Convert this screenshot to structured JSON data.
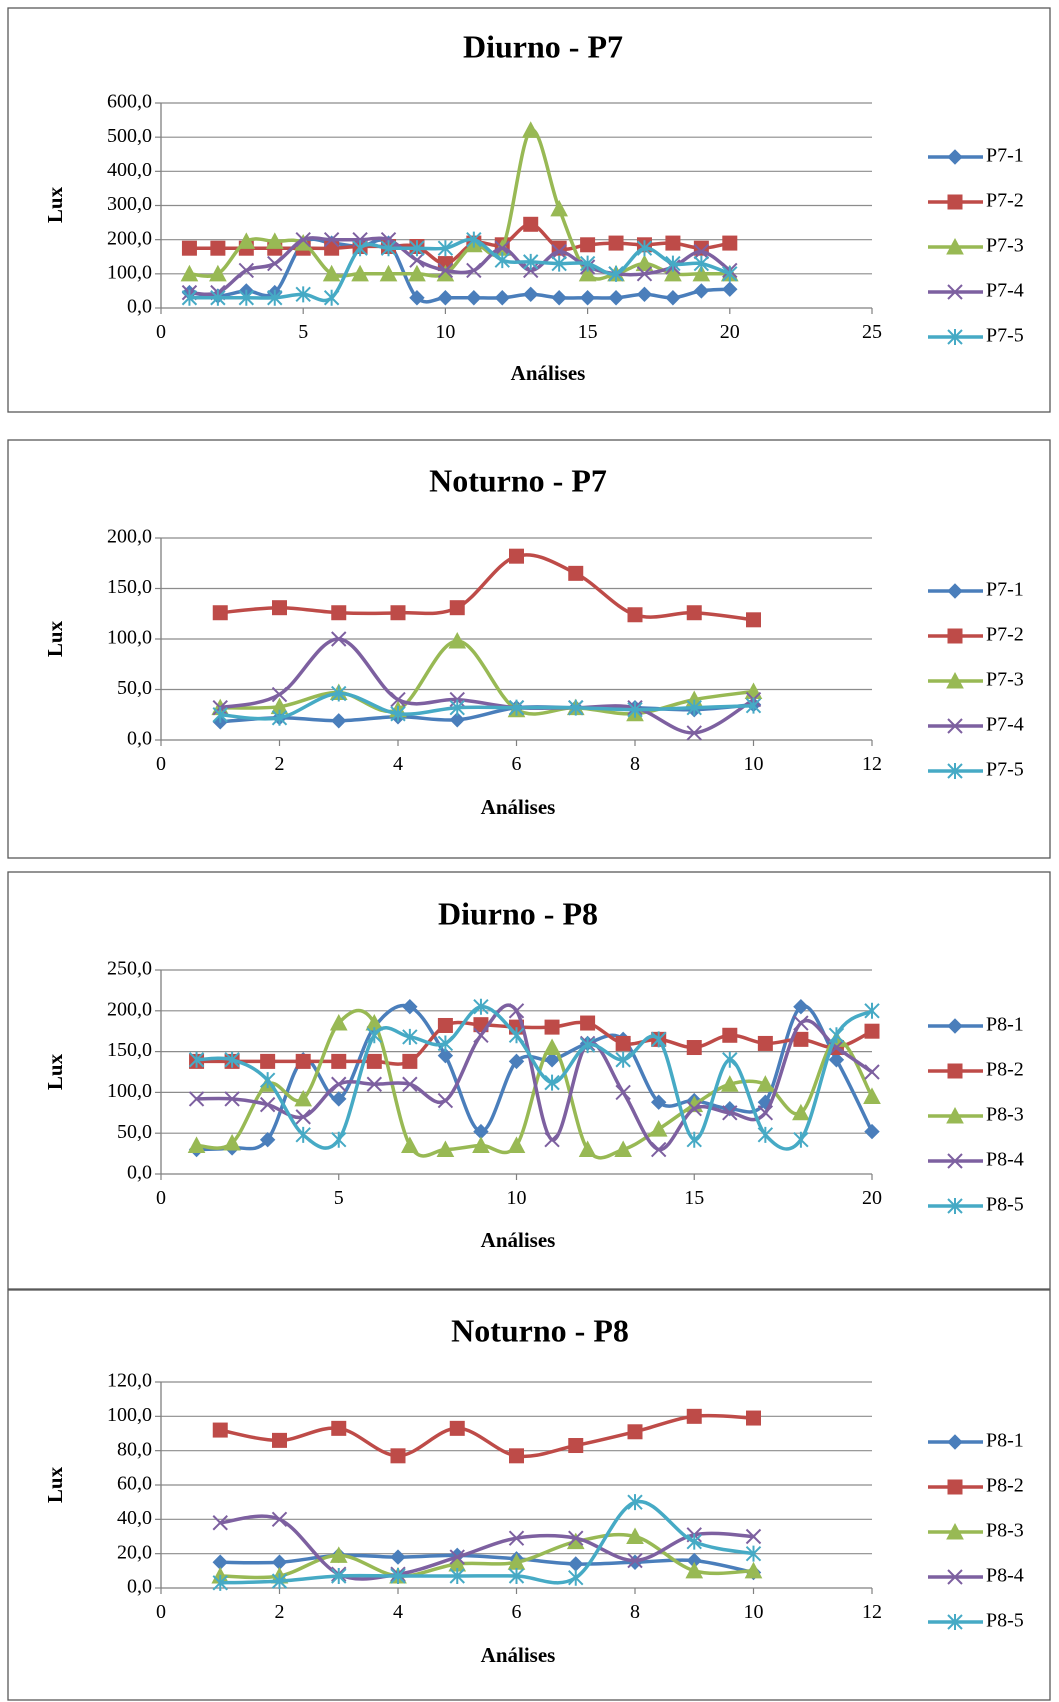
{
  "chart_data": [
    {
      "type": "line",
      "title": "Diurno - P7",
      "xlabel": "Análises",
      "ylabel": "Lux",
      "xlim": [
        0,
        25
      ],
      "ylim": [
        0,
        600
      ],
      "xticks": [
        0,
        5,
        10,
        15,
        20,
        25
      ],
      "xtick_labels": [
        "0",
        "5",
        "10",
        "15",
        "20",
        "25"
      ],
      "yticks": [
        0,
        100,
        200,
        300,
        400,
        500,
        600
      ],
      "ytick_labels": [
        "0,0",
        "100,0",
        "200,0",
        "300,0",
        "400,0",
        "500,0",
        "600,0"
      ],
      "grid": "horizontal",
      "legend_position": "right",
      "x": [
        1,
        2,
        3,
        4,
        5,
        6,
        7,
        8,
        9,
        10,
        11,
        12,
        13,
        14,
        15,
        16,
        17,
        18,
        19,
        20
      ],
      "series": [
        {
          "name": "P7-1",
          "color": "#4a7ebb",
          "marker": "diamond",
          "values": [
            45,
            35,
            50,
            45,
            190,
            190,
            180,
            190,
            30,
            30,
            30,
            30,
            40,
            30,
            30,
            30,
            40,
            30,
            50,
            55
          ]
        },
        {
          "name": "P7-2",
          "color": "#be4b48",
          "marker": "square",
          "values": [
            175,
            175,
            175,
            175,
            175,
            175,
            180,
            180,
            180,
            130,
            190,
            185,
            245,
            175,
            185,
            190,
            185,
            190,
            175,
            190
          ]
        },
        {
          "name": "P7-3",
          "color": "#98b954",
          "marker": "triangle",
          "values": [
            100,
            100,
            195,
            195,
            190,
            100,
            100,
            100,
            100,
            100,
            185,
            175,
            520,
            290,
            100,
            100,
            130,
            100,
            100,
            100
          ]
        },
        {
          "name": "P7-4",
          "color": "#7d60a0",
          "marker": "x",
          "values": [
            45,
            45,
            110,
            130,
            200,
            200,
            200,
            200,
            140,
            110,
            110,
            175,
            110,
            165,
            120,
            100,
            100,
            120,
            165,
            110
          ]
        },
        {
          "name": "P7-5",
          "color": "#46aac5",
          "marker": "star",
          "values": [
            30,
            30,
            30,
            30,
            40,
            30,
            175,
            175,
            175,
            175,
            200,
            140,
            135,
            130,
            130,
            100,
            175,
            130,
            130,
            100
          ]
        }
      ]
    },
    {
      "type": "line",
      "title": "Noturno - P7",
      "xlabel": "Análises",
      "ylabel": "Lux",
      "xlim": [
        0,
        12
      ],
      "ylim": [
        0,
        200
      ],
      "xticks": [
        0,
        2,
        4,
        6,
        8,
        10,
        12
      ],
      "xtick_labels": [
        "0",
        "2",
        "4",
        "6",
        "8",
        "10",
        "12"
      ],
      "yticks": [
        0,
        50,
        100,
        150,
        200
      ],
      "ytick_labels": [
        "0,0",
        "50,0",
        "100,0",
        "150,0",
        "200,0"
      ],
      "grid": "horizontal",
      "legend_position": "right",
      "x": [
        1,
        2,
        3,
        4,
        5,
        6,
        7,
        8,
        9,
        10
      ],
      "series": [
        {
          "name": "P7-1",
          "color": "#4a7ebb",
          "marker": "diamond",
          "values": [
            18,
            22,
            19,
            23,
            20,
            32,
            32,
            32,
            30,
            35
          ]
        },
        {
          "name": "P7-2",
          "color": "#be4b48",
          "marker": "square",
          "values": [
            126,
            131,
            126,
            126,
            131,
            182,
            165,
            124,
            126,
            119
          ]
        },
        {
          "name": "P7-3",
          "color": "#98b954",
          "marker": "triangle",
          "values": [
            32,
            33,
            47,
            30,
            98,
            30,
            32,
            26,
            40,
            48
          ]
        },
        {
          "name": "P7-4",
          "color": "#7d60a0",
          "marker": "x",
          "values": [
            32,
            45,
            100,
            40,
            40,
            32,
            32,
            32,
            7,
            40
          ]
        },
        {
          "name": "P7-5",
          "color": "#46aac5",
          "marker": "star",
          "values": [
            25,
            22,
            46,
            26,
            32,
            32,
            32,
            30,
            32,
            34
          ]
        }
      ]
    },
    {
      "type": "line",
      "title": "Diurno - P8",
      "xlabel": "Análises",
      "ylabel": "Lux",
      "xlim": [
        0,
        20
      ],
      "ylim": [
        0,
        250
      ],
      "xticks": [
        0,
        5,
        10,
        15,
        20
      ],
      "xtick_labels": [
        "0",
        "5",
        "10",
        "15",
        "20"
      ],
      "yticks": [
        0,
        50,
        100,
        150,
        200,
        250
      ],
      "ytick_labels": [
        "0,0",
        "50,0",
        "100,0",
        "150,0",
        "200,0",
        "250,0"
      ],
      "grid": "horizontal",
      "legend_position": "right",
      "x": [
        1,
        2,
        3,
        4,
        5,
        6,
        7,
        8,
        9,
        10,
        11,
        12,
        13,
        14,
        15,
        16,
        17,
        18,
        19,
        20
      ],
      "series": [
        {
          "name": "P8-1",
          "color": "#4a7ebb",
          "marker": "diamond",
          "values": [
            30,
            32,
            42,
            140,
            92,
            180,
            205,
            145,
            52,
            138,
            140,
            160,
            165,
            88,
            90,
            80,
            88,
            205,
            140,
            52
          ]
        },
        {
          "name": "P8-2",
          "color": "#be4b48",
          "marker": "square",
          "values": [
            138,
            138,
            138,
            138,
            138,
            138,
            138,
            182,
            183,
            180,
            180,
            185,
            160,
            165,
            155,
            170,
            160,
            165,
            155,
            175
          ]
        },
        {
          "name": "P8-3",
          "color": "#98b954",
          "marker": "triangle",
          "values": [
            35,
            38,
            110,
            92,
            185,
            185,
            35,
            30,
            35,
            35,
            155,
            30,
            30,
            55,
            85,
            110,
            110,
            75,
            165,
            95
          ]
        },
        {
          "name": "P8-4",
          "color": "#7d60a0",
          "marker": "x",
          "values": [
            92,
            92,
            85,
            70,
            110,
            110,
            110,
            90,
            170,
            200,
            42,
            160,
            100,
            30,
            80,
            75,
            75,
            185,
            155,
            125
          ]
        },
        {
          "name": "P8-5",
          "color": "#46aac5",
          "marker": "star",
          "values": [
            140,
            140,
            115,
            48,
            42,
            170,
            168,
            160,
            205,
            170,
            112,
            158,
            140,
            165,
            42,
            140,
            48,
            42,
            170,
            200
          ]
        }
      ]
    },
    {
      "type": "line",
      "title": "Noturno - P8",
      "xlabel": "Análises",
      "ylabel": "Lux",
      "xlim": [
        0,
        12
      ],
      "ylim": [
        0,
        120
      ],
      "xticks": [
        0,
        2,
        4,
        6,
        8,
        10,
        12
      ],
      "xtick_labels": [
        "0",
        "2",
        "4",
        "6",
        "8",
        "10",
        "12"
      ],
      "yticks": [
        0,
        20,
        40,
        60,
        80,
        100,
        120
      ],
      "ytick_labels": [
        "0,0",
        "20,0",
        "40,0",
        "60,0",
        "80,0",
        "100,0",
        "120,0"
      ],
      "grid": "horizontal",
      "legend_position": "right",
      "x": [
        1,
        2,
        3,
        4,
        5,
        6,
        7,
        8,
        9,
        10
      ],
      "series": [
        {
          "name": "P8-1",
          "color": "#4a7ebb",
          "marker": "diamond",
          "values": [
            15,
            15,
            19,
            18,
            19,
            17,
            14,
            15,
            16,
            9
          ]
        },
        {
          "name": "P8-2",
          "color": "#be4b48",
          "marker": "square",
          "values": [
            92,
            86,
            93,
            77,
            93,
            77,
            83,
            91,
            100,
            99
          ]
        },
        {
          "name": "P8-3",
          "color": "#98b954",
          "marker": "triangle",
          "values": [
            7,
            7,
            19,
            7,
            14,
            15,
            27,
            30,
            10,
            10
          ]
        },
        {
          "name": "P8-4",
          "color": "#7d60a0",
          "marker": "x",
          "values": [
            38,
            40,
            8,
            8,
            18,
            29,
            29,
            16,
            31,
            30
          ]
        },
        {
          "name": "P8-5",
          "color": "#46aac5",
          "marker": "star",
          "values": [
            3,
            4,
            7,
            7,
            7,
            7,
            6,
            50,
            27,
            20
          ]
        }
      ]
    }
  ]
}
